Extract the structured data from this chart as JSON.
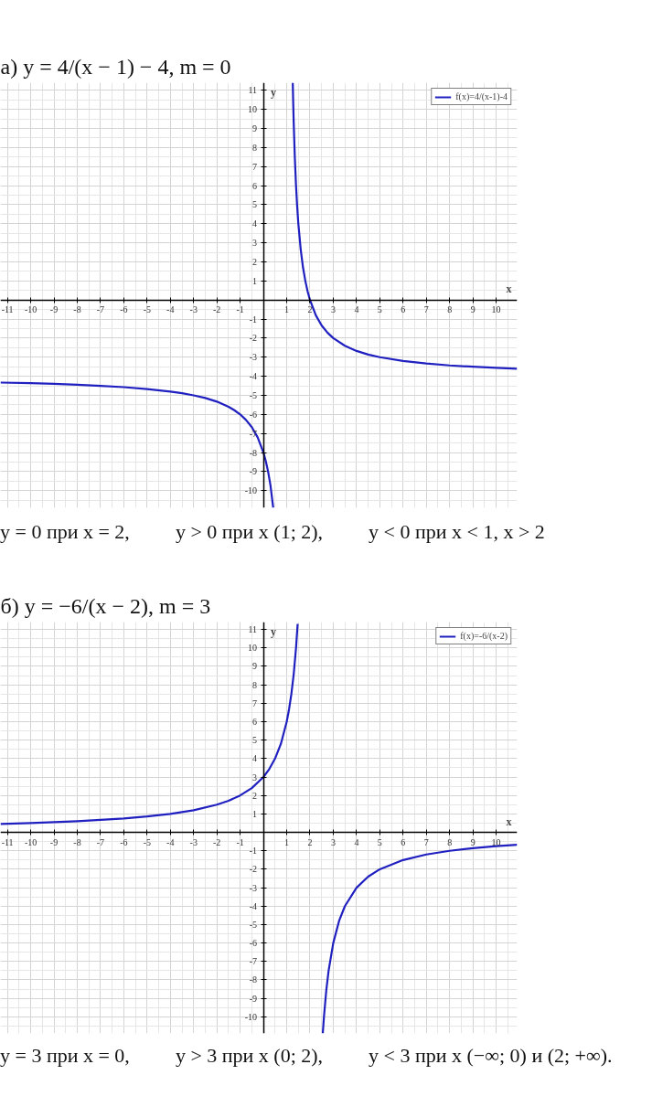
{
  "chart_data": [
    {
      "type": "line",
      "title": "а) y = 4/(x − 1) − 4,     m = 0",
      "xlabel": "x",
      "ylabel": "y",
      "annotations": [
        "y = 0 при x = 2,",
        "y > 0 при x (1; 2),",
        "y < 0 при x < 1, x > 2"
      ],
      "series": [
        {
          "name": "f(x)=4/(x-1)-4",
          "color": "#2020c0",
          "x": [
            -11.3,
            -10,
            -9,
            -8,
            -7,
            -6,
            -5,
            -4,
            -3.5,
            -3,
            -2.5,
            -2,
            -1.5,
            -1.25,
            -1,
            -0.75,
            -0.5,
            -0.25,
            0,
            0.1,
            0.2,
            0.3,
            0.42,
            1,
            1.26,
            1.28,
            1.3,
            1.35,
            1.4,
            1.45,
            1.5,
            1.6,
            1.7,
            1.8,
            1.9,
            2,
            2.25,
            2.5,
            2.75,
            3,
            3.5,
            4,
            4.5,
            5,
            6,
            7,
            8,
            9,
            10,
            10.9
          ],
          "values": [
            -4.33,
            -4.36,
            -4.4,
            -4.44,
            -4.5,
            -4.57,
            -4.67,
            -4.8,
            -4.89,
            -5,
            -5.14,
            -5.33,
            -5.6,
            -5.78,
            -6,
            -6.29,
            -6.67,
            -7.2,
            -8,
            -8.44,
            -9,
            -9.71,
            -10.9,
            null,
            11.4,
            10.29,
            9.33,
            7.43,
            6,
            4.89,
            4,
            2.67,
            1.71,
            1,
            0.44,
            0,
            -0.8,
            -1.33,
            -1.71,
            -2,
            -2.4,
            -2.67,
            -2.86,
            -3,
            -3.2,
            -3.33,
            -3.43,
            -3.5,
            -3.56,
            -3.6
          ]
        }
      ],
      "xlim": [
        -11.3,
        10.9
      ],
      "ylim": [
        -10.9,
        11.4
      ],
      "xticks": [
        -11,
        -10,
        -9,
        -8,
        -7,
        -6,
        -5,
        -4,
        -3,
        -2,
        -1,
        1,
        2,
        3,
        4,
        5,
        6,
        7,
        8,
        9,
        10
      ],
      "yticks": [
        -10,
        -9,
        -8,
        -7,
        -6,
        -5,
        -4,
        -3,
        -2,
        -1,
        1,
        2,
        3,
        4,
        5,
        6,
        7,
        8,
        9,
        10,
        11
      ],
      "grid": true,
      "legend": "top right"
    },
    {
      "type": "line",
      "title": "б) y = −6/(x − 2),     m = 3",
      "xlabel": "x",
      "ylabel": "y",
      "annotations": [
        "y = 3 при x = 0,",
        "y > 3 при x (0; 2),",
        "y < 3 при x (−∞; 0) и (2; +∞)."
      ],
      "series": [
        {
          "name": "f(x)=-6/(x-2)",
          "color": "#2020c0",
          "x": [
            -11.3,
            -10,
            -8,
            -6,
            -5,
            -4,
            -3,
            -2,
            -1.5,
            -1,
            -0.5,
            0,
            0.25,
            0.5,
            0.75,
            1,
            1.1,
            1.2,
            1.3,
            1.4,
            1.47,
            2,
            2.55,
            2.6,
            2.7,
            2.8,
            3,
            3.25,
            3.5,
            4,
            4.5,
            5,
            6,
            7,
            8,
            9,
            10,
            10.9
          ],
          "values": [
            0.45,
            0.5,
            0.6,
            0.75,
            0.86,
            1,
            1.2,
            1.5,
            1.71,
            2,
            2.4,
            3,
            3.43,
            4,
            4.8,
            6,
            6.67,
            7.5,
            8.57,
            10,
            11.3,
            null,
            -10.9,
            -10,
            -8.57,
            -7.5,
            -6,
            -4.8,
            -4,
            -3,
            -2.4,
            -2,
            -1.5,
            -1.2,
            -1,
            -0.86,
            -0.75,
            -0.67
          ]
        }
      ],
      "xlim": [
        -11.3,
        10.9
      ],
      "ylim": [
        -10.9,
        11.4
      ],
      "xticks": [
        -11,
        -10,
        -9,
        -8,
        -7,
        -6,
        -5,
        -4,
        -3,
        -2,
        -1,
        1,
        2,
        3,
        4,
        5,
        6,
        7,
        8,
        9,
        10
      ],
      "yticks": [
        -10,
        -9,
        -8,
        -7,
        -6,
        -5,
        -4,
        -3,
        -2,
        -1,
        1,
        2,
        3,
        4,
        5,
        6,
        7,
        8,
        9,
        10,
        11
      ],
      "grid": true,
      "legend": "top right"
    }
  ]
}
